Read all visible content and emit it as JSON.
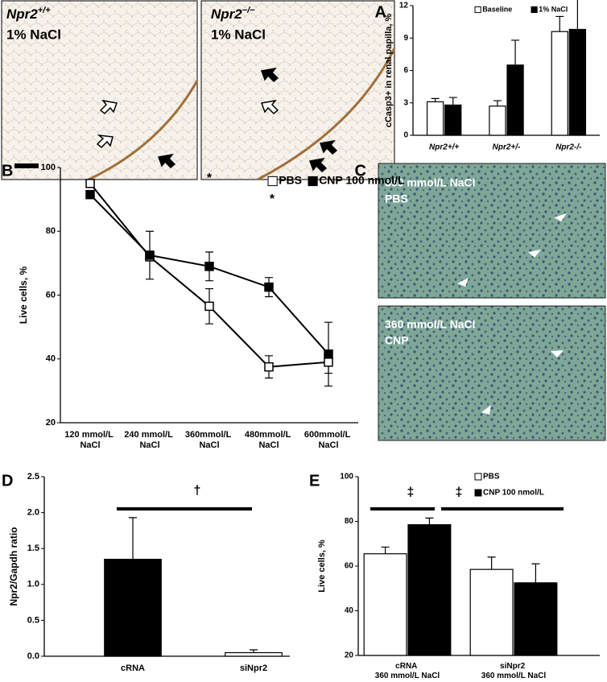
{
  "panel_labels": [
    "A",
    "B",
    "C",
    "D",
    "E"
  ],
  "micrographs": [
    {
      "genotype": "Npr2",
      "superscript": "+/+",
      "condition": "1% NaCl"
    },
    {
      "genotype": "Npr2",
      "superscript": "−/−",
      "condition": "1% NaCl"
    }
  ],
  "cell_images": [
    {
      "condition": "360 mmol/L NaCl",
      "treatment": "PBS"
    },
    {
      "condition": "360 mmol/L NaCl",
      "treatment": "CNP"
    }
  ],
  "chart_data": [
    {
      "type": "bar",
      "y_label": "cCasp3+ in renal papilla, %",
      "categories": [
        "Npr2+/+",
        "Npr2+/-",
        "Npr2-/-"
      ],
      "series": [
        {
          "name": "Baseline",
          "color": "#ffffff",
          "values": [
            3.1,
            2.7,
            9.6
          ],
          "errors": [
            0.3,
            0.5,
            1.4
          ]
        },
        {
          "name": "1% NaCl",
          "color": "#000000",
          "values": [
            2.8,
            6.5,
            9.8
          ],
          "errors": [
            0.7,
            2.3,
            3.8
          ]
        }
      ],
      "ylim": [
        0,
        12
      ],
      "yticks": [
        0,
        3,
        6,
        9,
        12
      ]
    },
    {
      "type": "line",
      "y_label": "Live cells, %",
      "categories": [
        "120 mmol/L NaCl",
        "240 mmol/L NaCl",
        "360mmol/L NaCl",
        "480mmol/L NaCl",
        "600mmol/L NaCl"
      ],
      "series": [
        {
          "name": "PBS",
          "color": "#ffffff",
          "values": [
            95,
            72,
            56.5,
            37.5,
            39
          ],
          "errors": [
            null,
            null,
            5.5,
            3.5,
            3.5
          ]
        },
        {
          "name": "CNP 100 nmol/L",
          "color": "#000000",
          "values": [
            91.5,
            72.5,
            69,
            62.5,
            41.5
          ],
          "errors": [
            null,
            7.5,
            4.5,
            3,
            10
          ]
        }
      ],
      "ylim": [
        20,
        100
      ],
      "yticks": [
        20,
        40,
        60,
        80,
        100
      ],
      "annotations": [
        "*",
        "*"
      ]
    },
    {
      "type": "bar",
      "y_label": "Npr2/Gapdh ratio",
      "categories": [
        "cRNA",
        "siNpr2"
      ],
      "values": [
        1.35,
        0.05
      ],
      "errors": [
        0.58,
        0.04
      ],
      "colors": [
        "#000000",
        "#ffffff"
      ],
      "ylim": [
        0,
        2.5
      ],
      "yticks": [
        {
          "value": 0,
          "label": "0.0"
        },
        {
          "value": 0.5,
          "label": "0.5"
        },
        {
          "value": 1,
          "label": "1.0"
        },
        {
          "value": 1.5,
          "label": "1.5"
        },
        {
          "value": 2,
          "label": "2.0"
        },
        {
          "value": 2.5,
          "label": "2.5"
        }
      ],
      "annotations": [
        "†"
      ]
    },
    {
      "type": "bar",
      "y_label": "Live cells, %",
      "categories": [
        "cRNA 360 mmol/L NaCl",
        "siNpr2 360 mmol/L NaCl"
      ],
      "series": [
        {
          "name": "PBS",
          "color": "#ffffff",
          "values": [
            65.5,
            58.5
          ],
          "errors": [
            3,
            5.5
          ]
        },
        {
          "name": "CNP 100 nmol/L",
          "color": "#000000",
          "values": [
            78.5,
            52.5
          ],
          "errors": [
            3,
            8.5
          ]
        }
      ],
      "ylim": [
        20,
        100
      ],
      "yticks": [
        20,
        40,
        60,
        80,
        100
      ],
      "annotations": [
        "‡",
        "‡"
      ]
    }
  ]
}
